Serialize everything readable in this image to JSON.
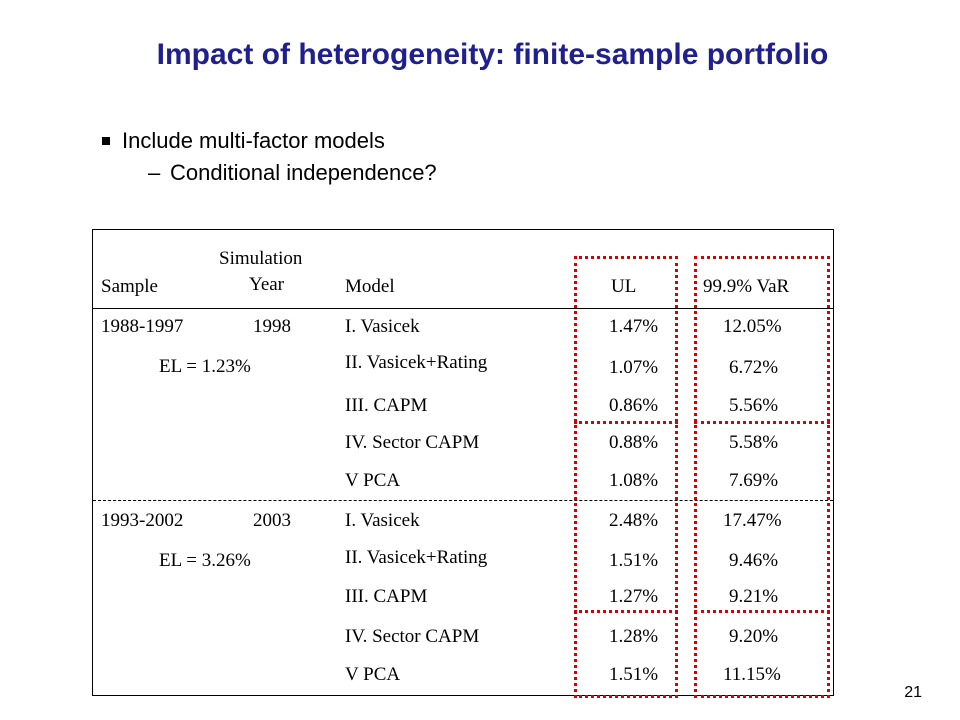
{
  "slide": {
    "title": "Impact of heterogeneity: finite-sample portfolio",
    "bullet_main": "Include multi-factor models",
    "sub_dash": "–",
    "bullet_sub": "Conditional independence?",
    "page_number": "21"
  },
  "table": {
    "headers": {
      "sample": "Sample",
      "simulation": "Simulation",
      "year": "Year",
      "model": "Model",
      "ul": "UL",
      "var": "99.9% VaR"
    },
    "groups": [
      {
        "sample": "1988-1997",
        "year": "1998",
        "el": "EL = 1.23%",
        "rows": [
          {
            "model": "I. Vasicek",
            "ul": "1.47%",
            "var": "12.05%"
          },
          {
            "model": "II. Vasicek+Rating",
            "ul": "1.07%",
            "var": "6.72%"
          },
          {
            "model": "III. CAPM",
            "ul": "0.86%",
            "var": "5.56%"
          },
          {
            "model": "IV. Sector CAPM",
            "ul": "0.88%",
            "var": "5.58%"
          },
          {
            "model": "V PCA",
            "ul": "1.08%",
            "var": "7.69%"
          }
        ]
      },
      {
        "sample": "1993-2002",
        "year": "2003",
        "el": "EL = 3.26%",
        "rows": [
          {
            "model": "I. Vasicek",
            "ul": "2.48%",
            "var": "17.47%"
          },
          {
            "model": "II. Vasicek+Rating",
            "ul": "1.51%",
            "var": "9.46%"
          },
          {
            "model": "III. CAPM",
            "ul": "1.27%",
            "var": "9.21%"
          },
          {
            "model": "IV. Sector CAPM",
            "ul": "1.28%",
            "var": "9.20%"
          },
          {
            "model": "V PCA",
            "ul": "1.51%",
            "var": "11.15%"
          }
        ]
      }
    ]
  },
  "colors": {
    "title": "#1f1f8f",
    "highlight": "#d80000"
  }
}
